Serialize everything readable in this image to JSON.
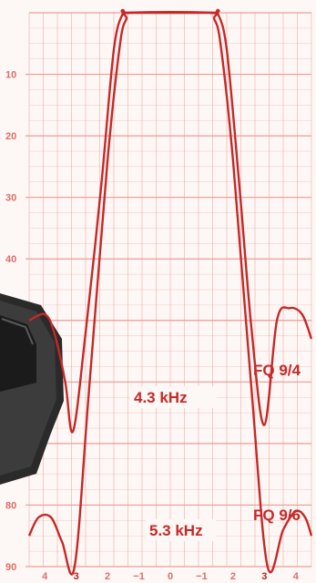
{
  "chart_data": {
    "type": "line",
    "title": "",
    "xlabel": "",
    "ylabel": "",
    "y_ticks": [
      "10",
      "20",
      "30",
      "40",
      "50",
      "60",
      "70",
      "80",
      "90"
    ],
    "ylim": [
      0,
      90
    ],
    "y_inverted": true,
    "x_ticks": [
      "4",
      "3",
      "2",
      "−1",
      "0",
      "−1",
      "2",
      "3",
      "4"
    ],
    "xlim": [
      -4.5,
      4.5
    ],
    "grid": true,
    "colors": {
      "grid": "#ee9a96",
      "curve": "#c62828",
      "background": "#fdf8f5",
      "device": "#2b2b2b"
    },
    "series": [
      {
        "name": "FQ 9/4",
        "x": [
          -4.5,
          -4.0,
          -3.7,
          -3.35,
          -3.1,
          -2.7,
          -2.2,
          -1.8,
          -1.5,
          -1.3,
          1.3,
          1.5,
          1.8,
          2.2,
          2.6,
          3.0,
          3.4,
          3.8,
          4.2,
          4.5
        ],
        "y": [
          50,
          49,
          52,
          60,
          68,
          52,
          28,
          6,
          0,
          0,
          0,
          0,
          6,
          28,
          52,
          67,
          50,
          48,
          49,
          53
        ]
      },
      {
        "name": "FQ 9/6",
        "x": [
          -4.5,
          -4.2,
          -3.8,
          -3.45,
          -3.05,
          -2.6,
          -2.0,
          -1.6,
          -1.4,
          -1.3,
          1.3,
          1.4,
          1.6,
          2.0,
          2.6,
          3.1,
          3.6,
          4.0,
          4.3,
          4.5
        ],
        "y": [
          85,
          82,
          82,
          86,
          90,
          62,
          24,
          5,
          1,
          0,
          0,
          1,
          5,
          24,
          62,
          90,
          84,
          81,
          82,
          85
        ]
      }
    ],
    "annotations": [
      "4.3 kHz",
      "FQ 9/4",
      "5.3 kHz",
      "FQ 9/6"
    ]
  }
}
